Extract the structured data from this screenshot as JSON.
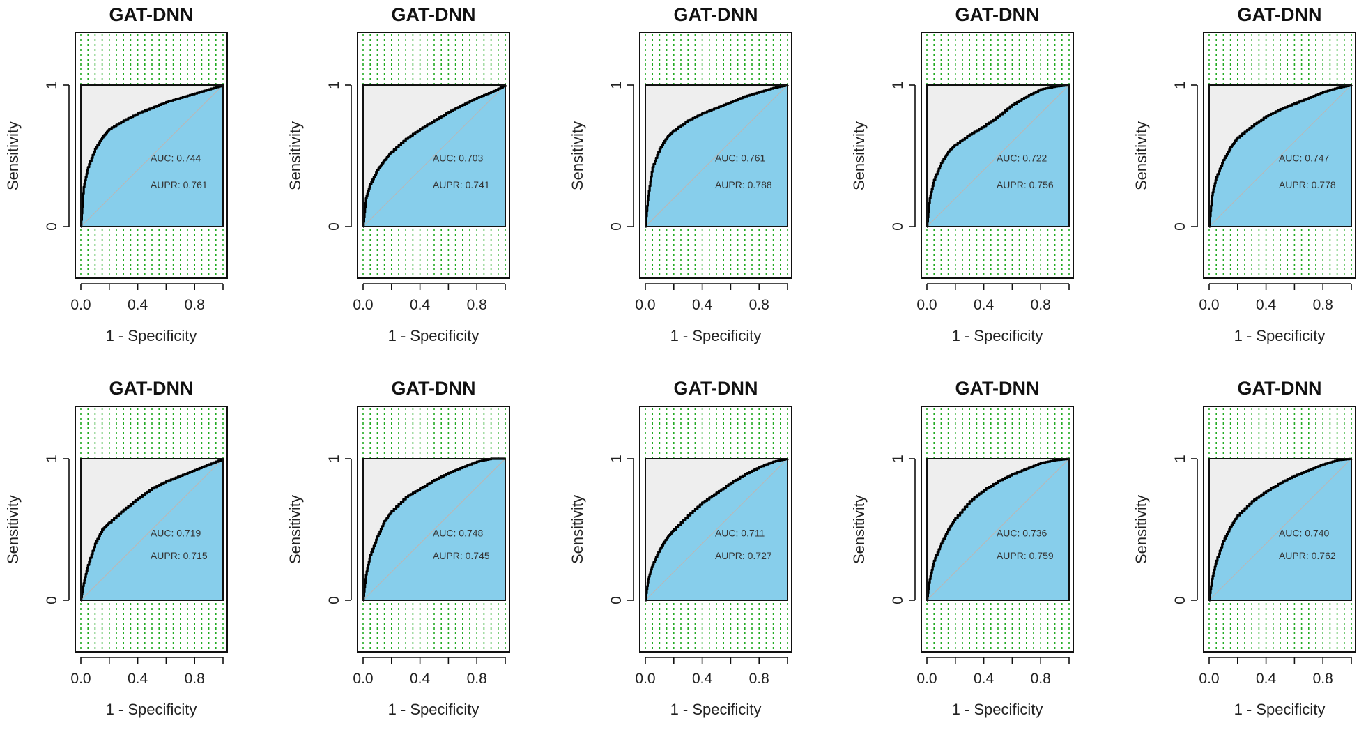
{
  "chart_data": [
    {
      "type": "line",
      "title": "GAT-DNN",
      "xlabel": "1 - Specificity",
      "ylabel": "Sensitivity",
      "xticks": [
        "0.0",
        "0.4",
        "0.8"
      ],
      "yticks": [
        "0",
        "1"
      ],
      "xlim": [
        0,
        1
      ],
      "ylim": [
        0,
        1
      ],
      "auc_label": "AUC: 0.744",
      "aupr_label": "AUPR: 0.761",
      "series": [
        {
          "name": "ROC",
          "x": [
            0.0,
            0.02,
            0.05,
            0.1,
            0.15,
            0.2,
            0.3,
            0.4,
            0.5,
            0.6,
            0.7,
            0.8,
            0.9,
            1.0
          ],
          "y": [
            0.0,
            0.28,
            0.42,
            0.55,
            0.63,
            0.69,
            0.75,
            0.8,
            0.84,
            0.88,
            0.91,
            0.94,
            0.97,
            1.0
          ]
        }
      ],
      "colors": {
        "curve": "#000000",
        "fill": "#87CEEB",
        "background": "#EEEEEE",
        "grid": "#22AA22",
        "diagonal": "#B8B8B8"
      }
    },
    {
      "type": "line",
      "title": "GAT-DNN",
      "xlabel": "1 - Specificity",
      "ylabel": "Sensitivity",
      "xticks": [
        "0.0",
        "0.4",
        "0.8"
      ],
      "yticks": [
        "0",
        "1"
      ],
      "xlim": [
        0,
        1
      ],
      "ylim": [
        0,
        1
      ],
      "auc_label": "AUC: 0.703",
      "aupr_label": "AUPR: 0.741",
      "series": [
        {
          "name": "ROC",
          "x": [
            0.0,
            0.02,
            0.05,
            0.1,
            0.15,
            0.2,
            0.3,
            0.4,
            0.5,
            0.6,
            0.7,
            0.8,
            0.9,
            1.0
          ],
          "y": [
            0.0,
            0.2,
            0.3,
            0.4,
            0.47,
            0.53,
            0.62,
            0.69,
            0.75,
            0.81,
            0.86,
            0.91,
            0.95,
            1.0
          ]
        }
      ],
      "colors": {
        "curve": "#000000",
        "fill": "#87CEEB",
        "background": "#EEEEEE",
        "grid": "#22AA22",
        "diagonal": "#B8B8B8"
      }
    },
    {
      "type": "line",
      "title": "GAT-DNN",
      "xlabel": "1 - Specificity",
      "ylabel": "Sensitivity",
      "xticks": [
        "0.0",
        "0.4",
        "0.8"
      ],
      "yticks": [
        "0",
        "1"
      ],
      "xlim": [
        0,
        1
      ],
      "ylim": [
        0,
        1
      ],
      "auc_label": "AUC: 0.761",
      "aupr_label": "AUPR: 0.788",
      "series": [
        {
          "name": "ROC",
          "x": [
            0.0,
            0.02,
            0.05,
            0.1,
            0.15,
            0.2,
            0.3,
            0.4,
            0.5,
            0.6,
            0.7,
            0.8,
            0.9,
            1.0
          ],
          "y": [
            0.0,
            0.22,
            0.42,
            0.55,
            0.63,
            0.68,
            0.75,
            0.8,
            0.84,
            0.88,
            0.92,
            0.95,
            0.98,
            1.0
          ]
        }
      ],
      "colors": {
        "curve": "#000000",
        "fill": "#87CEEB",
        "background": "#EEEEEE",
        "grid": "#22AA22",
        "diagonal": "#B8B8B8"
      }
    },
    {
      "type": "line",
      "title": "GAT-DNN",
      "xlabel": "1 - Specificity",
      "ylabel": "Sensitivity",
      "xticks": [
        "0.0",
        "0.4",
        "0.8"
      ],
      "yticks": [
        "0",
        "1"
      ],
      "xlim": [
        0,
        1
      ],
      "ylim": [
        0,
        1
      ],
      "auc_label": "AUC: 0.722",
      "aupr_label": "AUPR: 0.756",
      "series": [
        {
          "name": "ROC",
          "x": [
            0.0,
            0.02,
            0.05,
            0.1,
            0.15,
            0.2,
            0.3,
            0.4,
            0.5,
            0.6,
            0.7,
            0.8,
            0.9,
            1.0
          ],
          "y": [
            0.0,
            0.2,
            0.33,
            0.45,
            0.53,
            0.58,
            0.65,
            0.71,
            0.78,
            0.86,
            0.92,
            0.97,
            0.99,
            1.0
          ]
        }
      ],
      "colors": {
        "curve": "#000000",
        "fill": "#87CEEB",
        "background": "#EEEEEE",
        "grid": "#22AA22",
        "diagonal": "#B8B8B8"
      }
    },
    {
      "type": "line",
      "title": "GAT-DNN",
      "xlabel": "1 - Specificity",
      "ylabel": "Sensitivity",
      "xticks": [
        "0.0",
        "0.4",
        "0.8"
      ],
      "yticks": [
        "0",
        "1"
      ],
      "xlim": [
        0,
        1
      ],
      "ylim": [
        0,
        1
      ],
      "auc_label": "AUC: 0.747",
      "aupr_label": "AUPR: 0.778",
      "series": [
        {
          "name": "ROC",
          "x": [
            0.0,
            0.02,
            0.05,
            0.1,
            0.15,
            0.2,
            0.3,
            0.4,
            0.5,
            0.6,
            0.7,
            0.8,
            0.9,
            1.0
          ],
          "y": [
            0.0,
            0.22,
            0.35,
            0.47,
            0.56,
            0.63,
            0.71,
            0.78,
            0.83,
            0.87,
            0.91,
            0.95,
            0.98,
            1.0
          ]
        }
      ],
      "colors": {
        "curve": "#000000",
        "fill": "#87CEEB",
        "background": "#EEEEEE",
        "grid": "#22AA22",
        "diagonal": "#B8B8B8"
      }
    },
    {
      "type": "line",
      "title": "GAT-DNN",
      "xlabel": "1 - Specificity",
      "ylabel": "Sensitivity",
      "xticks": [
        "0.0",
        "0.4",
        "0.8"
      ],
      "yticks": [
        "0",
        "1"
      ],
      "xlim": [
        0,
        1
      ],
      "ylim": [
        0,
        1
      ],
      "auc_label": "AUC: 0.719",
      "aupr_label": "AUPR: 0.715",
      "series": [
        {
          "name": "ROC",
          "x": [
            0.0,
            0.02,
            0.05,
            0.1,
            0.15,
            0.2,
            0.3,
            0.4,
            0.5,
            0.6,
            0.7,
            0.8,
            0.9,
            1.0
          ],
          "y": [
            0.0,
            0.12,
            0.25,
            0.4,
            0.5,
            0.55,
            0.64,
            0.72,
            0.79,
            0.84,
            0.88,
            0.92,
            0.96,
            1.0
          ]
        }
      ],
      "colors": {
        "curve": "#000000",
        "fill": "#87CEEB",
        "background": "#EEEEEE",
        "grid": "#22AA22",
        "diagonal": "#B8B8B8"
      }
    },
    {
      "type": "line",
      "title": "GAT-DNN",
      "xlabel": "1 - Specificity",
      "ylabel": "Sensitivity",
      "xticks": [
        "0.0",
        "0.4",
        "0.8"
      ],
      "yticks": [
        "0",
        "1"
      ],
      "xlim": [
        0,
        1
      ],
      "ylim": [
        0,
        1
      ],
      "auc_label": "AUC: 0.748",
      "aupr_label": "AUPR: 0.745",
      "series": [
        {
          "name": "ROC",
          "x": [
            0.0,
            0.02,
            0.05,
            0.1,
            0.15,
            0.2,
            0.3,
            0.4,
            0.5,
            0.6,
            0.7,
            0.8,
            0.9,
            1.0
          ],
          "y": [
            0.0,
            0.18,
            0.32,
            0.45,
            0.56,
            0.63,
            0.73,
            0.79,
            0.85,
            0.9,
            0.94,
            0.98,
            1.0,
            1.0
          ]
        }
      ],
      "colors": {
        "curve": "#000000",
        "fill": "#87CEEB",
        "background": "#EEEEEE",
        "grid": "#22AA22",
        "diagonal": "#B8B8B8"
      }
    },
    {
      "type": "line",
      "title": "GAT-DNN",
      "xlabel": "1 - Specificity",
      "ylabel": "Sensitivity",
      "xticks": [
        "0.0",
        "0.4",
        "0.8"
      ],
      "yticks": [
        "0",
        "1"
      ],
      "xlim": [
        0,
        1
      ],
      "ylim": [
        0,
        1
      ],
      "auc_label": "AUC: 0.711",
      "aupr_label": "AUPR: 0.727",
      "series": [
        {
          "name": "ROC",
          "x": [
            0.0,
            0.02,
            0.05,
            0.1,
            0.15,
            0.2,
            0.3,
            0.4,
            0.5,
            0.6,
            0.7,
            0.8,
            0.9,
            1.0
          ],
          "y": [
            0.0,
            0.15,
            0.25,
            0.36,
            0.44,
            0.5,
            0.6,
            0.69,
            0.76,
            0.83,
            0.89,
            0.94,
            0.98,
            1.0
          ]
        }
      ],
      "colors": {
        "curve": "#000000",
        "fill": "#87CEEB",
        "background": "#EEEEEE",
        "grid": "#22AA22",
        "diagonal": "#B8B8B8"
      }
    },
    {
      "type": "line",
      "title": "GAT-DNN",
      "xlabel": "1 - Specificity",
      "ylabel": "Sensitivity",
      "xticks": [
        "0.0",
        "0.4",
        "0.8"
      ],
      "yticks": [
        "0",
        "1"
      ],
      "xlim": [
        0,
        1
      ],
      "ylim": [
        0,
        1
      ],
      "auc_label": "AUC: 0.736",
      "aupr_label": "AUPR: 0.759",
      "series": [
        {
          "name": "ROC",
          "x": [
            0.0,
            0.02,
            0.05,
            0.1,
            0.15,
            0.2,
            0.3,
            0.4,
            0.5,
            0.6,
            0.7,
            0.8,
            0.9,
            1.0
          ],
          "y": [
            0.0,
            0.15,
            0.28,
            0.4,
            0.5,
            0.58,
            0.7,
            0.78,
            0.84,
            0.89,
            0.93,
            0.97,
            0.99,
            1.0
          ]
        }
      ],
      "colors": {
        "curve": "#000000",
        "fill": "#87CEEB",
        "background": "#EEEEEE",
        "grid": "#22AA22",
        "diagonal": "#B8B8B8"
      }
    },
    {
      "type": "line",
      "title": "GAT-DNN",
      "xlabel": "1 - Specificity",
      "ylabel": "Sensitivity",
      "xticks": [
        "0.0",
        "0.4",
        "0.8"
      ],
      "yticks": [
        "0",
        "1"
      ],
      "xlim": [
        0,
        1
      ],
      "ylim": [
        0,
        1
      ],
      "auc_label": "AUC: 0.740",
      "aupr_label": "AUPR: 0.762",
      "series": [
        {
          "name": "ROC",
          "x": [
            0.0,
            0.02,
            0.05,
            0.1,
            0.15,
            0.2,
            0.3,
            0.4,
            0.5,
            0.6,
            0.7,
            0.8,
            0.9,
            1.0
          ],
          "y": [
            0.0,
            0.15,
            0.28,
            0.42,
            0.52,
            0.6,
            0.7,
            0.77,
            0.83,
            0.88,
            0.92,
            0.96,
            0.99,
            1.0
          ]
        }
      ],
      "colors": {
        "curve": "#000000",
        "fill": "#87CEEB",
        "background": "#EEEEEE",
        "grid": "#22AA22",
        "diagonal": "#B8B8B8"
      }
    }
  ]
}
